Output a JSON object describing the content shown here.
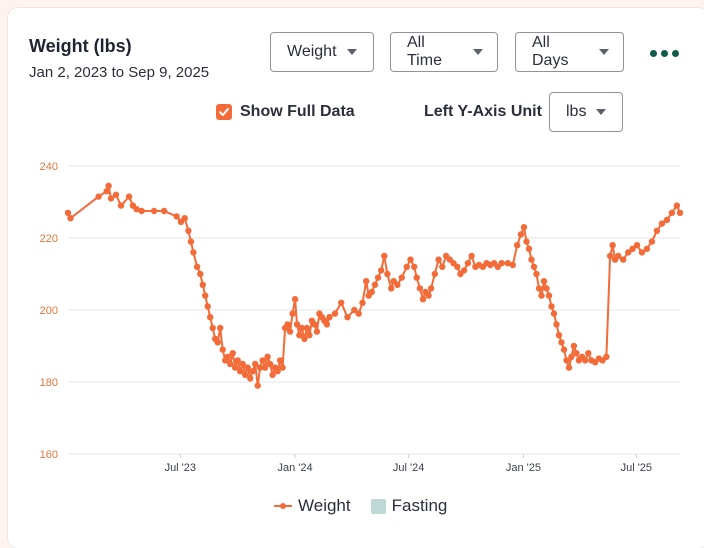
{
  "header": {
    "title": "Weight (lbs)",
    "date_range": "Jan 2, 2023 to Sep 9, 2025"
  },
  "controls": {
    "metric": "Weight",
    "period": "All Time",
    "days": "All Days",
    "show_full_data_label": "Show Full Data",
    "show_full_data_checked": true,
    "left_axis_unit_label": "Left Y-Axis Unit",
    "left_axis_unit": "lbs"
  },
  "colors": {
    "accent": "#f26b38",
    "fasting": "#bed8d6",
    "menu": "#0f5a4a",
    "axis_text": "#e2743d"
  },
  "chart_data": {
    "type": "line",
    "title": "Weight (lbs)",
    "x_start": "2023-01-02",
    "x_end": "2025-09-09",
    "ylim": [
      160,
      240
    ],
    "yticks": [
      160,
      180,
      200,
      220,
      240
    ],
    "xticks": [
      {
        "date": "2023-07-01",
        "label": "Jul '23"
      },
      {
        "date": "2024-01-01",
        "label": "Jan '24"
      },
      {
        "date": "2024-07-01",
        "label": "Jul '24"
      },
      {
        "date": "2025-01-01",
        "label": "Jan '25"
      },
      {
        "date": "2025-07-01",
        "label": "Jul '25"
      }
    ],
    "grid": true,
    "legend_position": "bottom",
    "series": [
      {
        "name": "Weight",
        "points": [
          [
            "2023-01-02",
            227
          ],
          [
            "2023-01-06",
            225.5
          ],
          [
            "2023-02-20",
            231.5
          ],
          [
            "2023-03-05",
            233
          ],
          [
            "2023-03-08",
            234.5
          ],
          [
            "2023-03-12",
            231
          ],
          [
            "2023-03-20",
            232
          ],
          [
            "2023-03-28",
            229
          ],
          [
            "2023-04-10",
            231.5
          ],
          [
            "2023-04-16",
            229
          ],
          [
            "2023-04-22",
            228
          ],
          [
            "2023-04-30",
            227.5
          ],
          [
            "2023-05-20",
            227.5
          ],
          [
            "2023-06-05",
            227.5
          ],
          [
            "2023-06-25",
            226
          ],
          [
            "2023-07-02",
            224.5
          ],
          [
            "2023-07-08",
            225.5
          ],
          [
            "2023-07-14",
            222
          ],
          [
            "2023-07-18",
            219
          ],
          [
            "2023-07-22",
            216
          ],
          [
            "2023-07-28",
            212
          ],
          [
            "2023-08-02",
            210
          ],
          [
            "2023-08-06",
            207
          ],
          [
            "2023-08-10",
            204
          ],
          [
            "2023-08-14",
            201
          ],
          [
            "2023-08-18",
            198
          ],
          [
            "2023-08-22",
            195
          ],
          [
            "2023-08-26",
            192
          ],
          [
            "2023-08-30",
            191
          ],
          [
            "2023-09-03",
            195
          ],
          [
            "2023-09-07",
            189
          ],
          [
            "2023-09-11",
            186
          ],
          [
            "2023-09-15",
            187
          ],
          [
            "2023-09-19",
            185
          ],
          [
            "2023-09-23",
            188
          ],
          [
            "2023-09-27",
            184
          ],
          [
            "2023-10-01",
            186
          ],
          [
            "2023-10-05",
            183
          ],
          [
            "2023-10-09",
            185
          ],
          [
            "2023-10-13",
            182
          ],
          [
            "2023-10-17",
            184
          ],
          [
            "2023-10-21",
            181
          ],
          [
            "2023-10-25",
            183
          ],
          [
            "2023-10-29",
            185
          ],
          [
            "2023-11-02",
            179
          ],
          [
            "2023-11-06",
            184
          ],
          [
            "2023-11-10",
            186
          ],
          [
            "2023-11-14",
            184
          ],
          [
            "2023-11-18",
            187
          ],
          [
            "2023-11-22",
            185
          ],
          [
            "2023-11-26",
            182
          ],
          [
            "2023-11-30",
            184
          ],
          [
            "2023-12-04",
            183
          ],
          [
            "2023-12-08",
            186
          ],
          [
            "2023-12-12",
            184
          ],
          [
            "2023-12-16",
            195
          ],
          [
            "2023-12-20",
            196
          ],
          [
            "2023-12-24",
            194
          ],
          [
            "2023-12-28",
            199
          ],
          [
            "2024-01-01",
            203
          ],
          [
            "2024-01-04",
            196
          ],
          [
            "2024-01-08",
            193
          ],
          [
            "2024-01-12",
            195
          ],
          [
            "2024-01-16",
            192
          ],
          [
            "2024-01-20",
            195
          ],
          [
            "2024-01-24",
            193
          ],
          [
            "2024-01-28",
            197
          ],
          [
            "2024-02-01",
            196
          ],
          [
            "2024-02-05",
            194
          ],
          [
            "2024-02-09",
            199
          ],
          [
            "2024-02-13",
            198
          ],
          [
            "2024-02-17",
            197
          ],
          [
            "2024-02-21",
            196
          ],
          [
            "2024-02-25",
            198
          ],
          [
            "2024-03-05",
            199
          ],
          [
            "2024-03-15",
            202
          ],
          [
            "2024-03-25",
            198
          ],
          [
            "2024-04-05",
            200
          ],
          [
            "2024-04-12",
            199
          ],
          [
            "2024-04-18",
            202
          ],
          [
            "2024-04-24",
            208
          ],
          [
            "2024-04-28",
            204
          ],
          [
            "2024-05-03",
            205
          ],
          [
            "2024-05-08",
            207
          ],
          [
            "2024-05-13",
            209
          ],
          [
            "2024-05-18",
            211
          ],
          [
            "2024-05-23",
            215
          ],
          [
            "2024-05-28",
            210
          ],
          [
            "2024-06-03",
            206
          ],
          [
            "2024-06-07",
            208
          ],
          [
            "2024-06-13",
            207
          ],
          [
            "2024-06-20",
            209
          ],
          [
            "2024-06-28",
            212
          ],
          [
            "2024-07-04",
            214
          ],
          [
            "2024-07-10",
            212
          ],
          [
            "2024-07-14",
            209
          ],
          [
            "2024-07-19",
            206
          ],
          [
            "2024-07-24",
            203
          ],
          [
            "2024-07-28",
            205
          ],
          [
            "2024-08-02",
            204
          ],
          [
            "2024-08-06",
            206
          ],
          [
            "2024-08-12",
            210
          ],
          [
            "2024-08-18",
            214
          ],
          [
            "2024-08-24",
            212
          ],
          [
            "2024-08-30",
            215
          ],
          [
            "2024-09-05",
            214
          ],
          [
            "2024-09-11",
            213
          ],
          [
            "2024-09-17",
            212
          ],
          [
            "2024-09-22",
            210
          ],
          [
            "2024-09-28",
            211
          ],
          [
            "2024-10-04",
            213
          ],
          [
            "2024-10-10",
            215
          ],
          [
            "2024-10-16",
            212
          ],
          [
            "2024-10-22",
            212.5
          ],
          [
            "2024-10-28",
            212
          ],
          [
            "2024-11-03",
            213
          ],
          [
            "2024-11-09",
            212.5
          ],
          [
            "2024-11-15",
            213
          ],
          [
            "2024-11-21",
            212
          ],
          [
            "2024-11-27",
            213
          ],
          [
            "2024-12-07",
            213
          ],
          [
            "2024-12-15",
            212.5
          ],
          [
            "2024-12-22",
            218
          ],
          [
            "2024-12-28",
            221
          ],
          [
            "2025-01-02",
            223
          ],
          [
            "2025-01-06",
            219
          ],
          [
            "2025-01-10",
            217
          ],
          [
            "2025-01-14",
            214
          ],
          [
            "2025-01-18",
            212
          ],
          [
            "2025-01-22",
            210
          ],
          [
            "2025-01-26",
            206
          ],
          [
            "2025-01-30",
            204
          ],
          [
            "2025-02-03",
            208
          ],
          [
            "2025-02-07",
            206
          ],
          [
            "2025-02-11",
            204
          ],
          [
            "2025-02-15",
            201
          ],
          [
            "2025-02-19",
            199
          ],
          [
            "2025-02-23",
            196
          ],
          [
            "2025-02-27",
            193
          ],
          [
            "2025-03-03",
            191
          ],
          [
            "2025-03-07",
            189
          ],
          [
            "2025-03-11",
            186
          ],
          [
            "2025-03-15",
            184
          ],
          [
            "2025-03-19",
            187
          ],
          [
            "2025-03-23",
            190
          ],
          [
            "2025-03-27",
            188
          ],
          [
            "2025-03-31",
            186
          ],
          [
            "2025-04-05",
            187
          ],
          [
            "2025-04-10",
            186
          ],
          [
            "2025-04-15",
            188
          ],
          [
            "2025-04-20",
            186
          ],
          [
            "2025-04-26",
            185.5
          ],
          [
            "2025-05-02",
            186.5
          ],
          [
            "2025-05-08",
            186
          ],
          [
            "2025-05-14",
            187
          ],
          [
            "2025-05-20",
            215
          ],
          [
            "2025-05-24",
            218
          ],
          [
            "2025-05-28",
            214
          ],
          [
            "2025-06-02",
            215
          ],
          [
            "2025-06-10",
            214
          ],
          [
            "2025-06-18",
            216
          ],
          [
            "2025-06-25",
            217
          ],
          [
            "2025-07-02",
            218
          ],
          [
            "2025-07-10",
            216
          ],
          [
            "2025-07-18",
            217
          ],
          [
            "2025-07-26",
            219
          ],
          [
            "2025-08-03",
            222
          ],
          [
            "2025-08-11",
            224
          ],
          [
            "2025-08-19",
            225
          ],
          [
            "2025-08-27",
            227
          ],
          [
            "2025-09-04",
            229
          ],
          [
            "2025-09-09",
            227
          ]
        ]
      }
    ],
    "legend": [
      {
        "label": "Weight",
        "kind": "line"
      },
      {
        "label": "Fasting",
        "kind": "box"
      }
    ]
  }
}
